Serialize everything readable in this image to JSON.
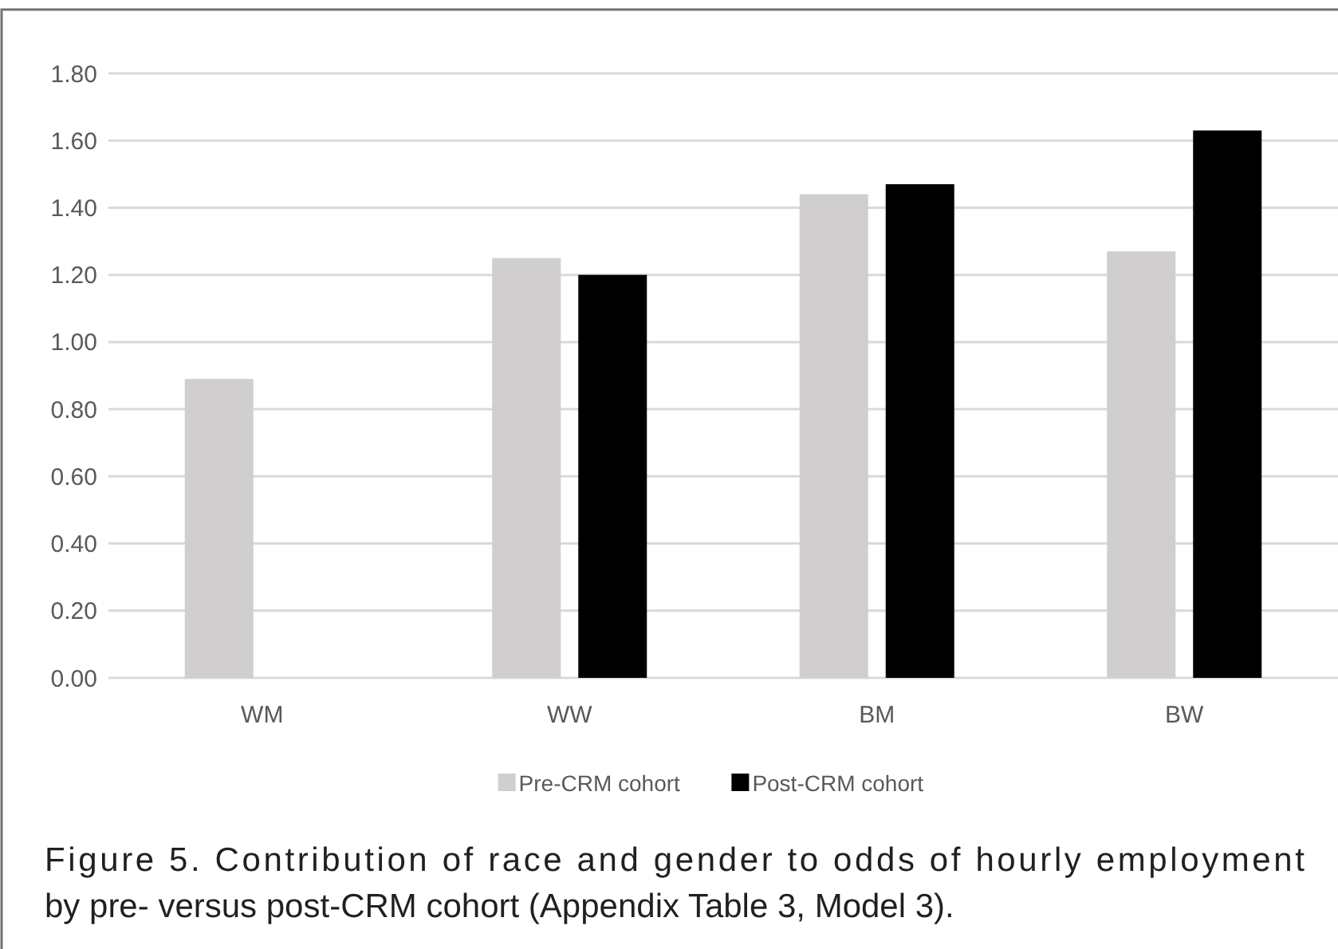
{
  "chart_data": {
    "type": "bar",
    "categories": [
      "WM",
      "WW",
      "BM",
      "BW"
    ],
    "series": [
      {
        "name": "Pre-CRM cohort",
        "color": "#d0cece",
        "values": [
          0.89,
          1.25,
          1.44,
          1.27
        ]
      },
      {
        "name": "Post-CRM cohort",
        "color": "#000000",
        "values": [
          null,
          1.2,
          1.47,
          1.63
        ]
      }
    ],
    "ylim": [
      0,
      1.8
    ],
    "yticks": [
      {
        "value": 0,
        "label": "0.00"
      },
      {
        "value": 0.2,
        "label": "0.20"
      },
      {
        "value": 0.4,
        "label": "0.40"
      },
      {
        "value": 0.6,
        "label": "0.60"
      },
      {
        "value": 0.8,
        "label": "0.80"
      },
      {
        "value": 1,
        "label": "1.00"
      },
      {
        "value": 1.2,
        "label": "1.20"
      },
      {
        "value": 1.4,
        "label": "1.40"
      },
      {
        "value": 1.6,
        "label": "1.60"
      },
      {
        "value": 1.8,
        "label": "1.80"
      }
    ],
    "grid": "y",
    "legend": "bottom",
    "annotations": [
      "Figure 5. Contribution of race and gender to odds of hourly employment by pre- versus post-CRM cohort (Appendix Table 3, Model 3)."
    ]
  }
}
